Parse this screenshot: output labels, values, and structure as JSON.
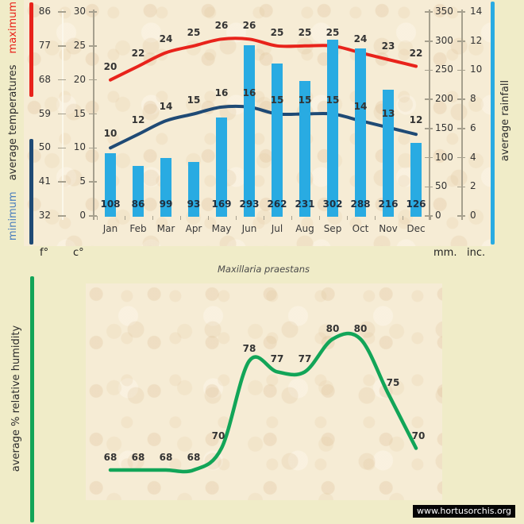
{
  "title": "Maxillaria praestans",
  "watermark": "www.hortusorchis.org",
  "units_row": {
    "f": "f°",
    "c": "c°",
    "mm": "mm.",
    "inc": "inc."
  },
  "left_axis_label": {
    "min": "minimum",
    "mid": "average temperatures",
    "max": "maximum"
  },
  "right_axis_label": "average rainfall",
  "humidity_axis_label": "average % relative humidity",
  "colors": {
    "background": "#f0ecc8",
    "parchment": "#f6ecd5",
    "bar_blue": "#29abe2",
    "max_red": "#e8231b",
    "min_navy": "#1f4a75",
    "humidity_green": "#12a558",
    "min_label_blue": "#4a7dbd",
    "axis_line_gray": "#a6a08e",
    "axis_line_light": "#fbf7ea",
    "bar_value_text": "#203040",
    "watermark_bg": "#050505",
    "watermark_text": "#ffffff"
  },
  "chart_data": [
    {
      "type": "bar",
      "title": "Maxillaria praestans",
      "categories": [
        "Jan",
        "Feb",
        "Mar",
        "Apr",
        "May",
        "Jun",
        "Jul",
        "Aug",
        "Sep",
        "Oct",
        "Nov",
        "Dec"
      ],
      "series": [
        {
          "name": "maximum average temperature",
          "type": "line",
          "unit": "c°",
          "color": "#e8231b",
          "values": [
            20,
            22,
            24,
            25,
            26,
            26,
            25,
            25,
            25,
            24,
            23,
            22
          ]
        },
        {
          "name": "minimum average temperature",
          "type": "line",
          "unit": "c°",
          "color": "#1f4a75",
          "values": [
            10,
            12,
            14,
            15,
            16,
            16,
            15,
            15,
            15,
            14,
            13,
            12
          ]
        },
        {
          "name": "average rainfall",
          "type": "bar",
          "unit": "mm",
          "color": "#29abe2",
          "values": [
            108,
            86,
            99,
            93,
            169,
            293,
            262,
            231,
            302,
            288,
            216,
            126
          ]
        }
      ],
      "axes": {
        "fahrenheit": {
          "label": "f°",
          "ticks": [
            86,
            77,
            68,
            59,
            50,
            41,
            32
          ]
        },
        "celsius": {
          "label": "c°",
          "ticks": [
            30,
            25,
            20,
            15,
            10,
            5,
            0
          ],
          "range": [
            0,
            30
          ]
        },
        "millimeters": {
          "label": "mm.",
          "ticks": [
            350,
            300,
            250,
            200,
            150,
            100,
            50,
            0
          ],
          "range": [
            0,
            350
          ]
        },
        "inches": {
          "label": "inc.",
          "ticks": [
            14,
            12,
            10,
            8,
            6,
            4,
            2,
            0
          ],
          "range": [
            0,
            14
          ]
        }
      },
      "legend_position": "left-and-right-rotated-labels",
      "grid": false
    },
    {
      "type": "line",
      "name": "average % relative humidity",
      "categories": [
        "Jan",
        "Feb",
        "Mar",
        "Apr",
        "May",
        "Jun",
        "Jul",
        "Aug",
        "Sep",
        "Oct",
        "Nov",
        "Dec"
      ],
      "values": [
        68,
        68,
        68,
        68,
        70,
        78,
        77,
        77,
        80,
        80,
        75,
        70
      ],
      "color": "#12a558",
      "ylim": [
        66,
        82
      ],
      "grid": false,
      "x_axis_labels_shown": false
    }
  ]
}
